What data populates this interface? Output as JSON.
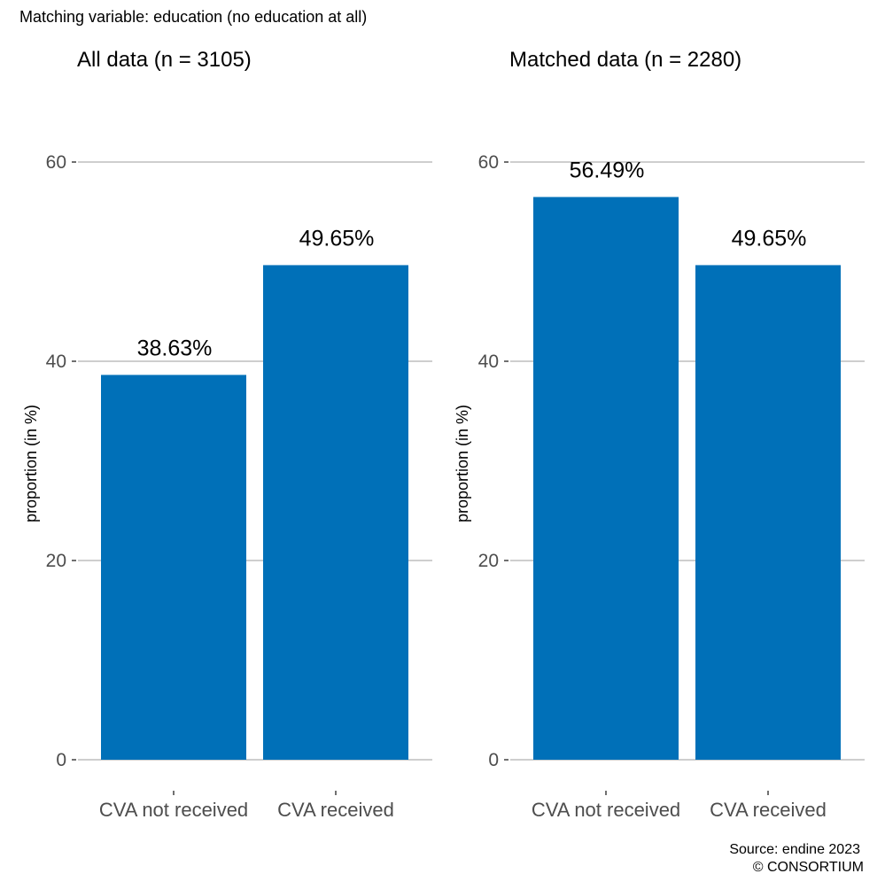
{
  "supertitle": "Matching variable: education (no education at all)",
  "source": "Source: endine 2023",
  "copyright": "© CONSORTIUM",
  "bar_color": "#0070B8",
  "chart_data": [
    {
      "type": "bar",
      "title": "All data (n = 3105)",
      "ylabel": "proportion (in %)",
      "xlabel": "",
      "categories": [
        "CVA not received",
        "CVA received"
      ],
      "values": [
        38.63,
        49.65
      ],
      "value_labels": [
        "38.63%",
        "49.65%"
      ],
      "ylim": [
        0,
        60
      ],
      "yticks": [
        0,
        20,
        40,
        60
      ],
      "grid": true
    },
    {
      "type": "bar",
      "title": "Matched data (n = 2280)",
      "ylabel": "proportion (in %)",
      "xlabel": "",
      "categories": [
        "CVA not received",
        "CVA received"
      ],
      "values": [
        56.49,
        49.65
      ],
      "value_labels": [
        "56.49%",
        "49.65%"
      ],
      "ylim": [
        0,
        60
      ],
      "yticks": [
        0,
        20,
        40,
        60
      ],
      "grid": true
    }
  ]
}
